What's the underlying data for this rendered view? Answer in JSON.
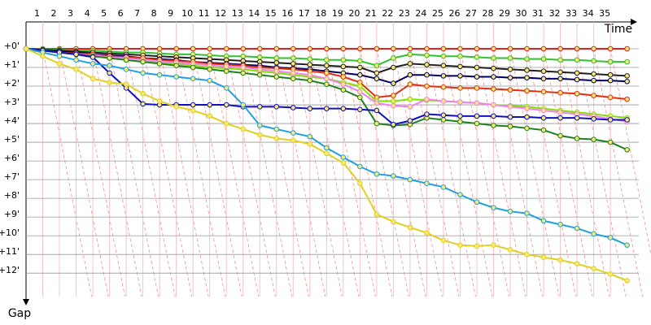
{
  "chart_data": {
    "type": "line",
    "x_label": "Time",
    "y_label": "Gap",
    "x": [
      0,
      1,
      2,
      3,
      4,
      5,
      6,
      7,
      8,
      9,
      10,
      11,
      12,
      13,
      14,
      15,
      16,
      17,
      18,
      19,
      20,
      21,
      22,
      23,
      24,
      25,
      26,
      27,
      28,
      29,
      30,
      31,
      32,
      33,
      34,
      35,
      36
    ],
    "xlim": [
      0,
      36.7
    ],
    "xticks": [
      1,
      2,
      3,
      4,
      5,
      6,
      7,
      8,
      9,
      10,
      11,
      12,
      13,
      14,
      15,
      16,
      17,
      18,
      19,
      20,
      21,
      22,
      23,
      24,
      25,
      26,
      27,
      28,
      29,
      30,
      31,
      32,
      33,
      34,
      35
    ],
    "ylim": [
      -0.1,
      12.5
    ],
    "y_inverted": true,
    "yticks": [
      {
        "value": 0,
        "label": "+0'"
      },
      {
        "value": 1,
        "label": "+1'"
      },
      {
        "value": 2,
        "label": "+2'"
      },
      {
        "value": 3,
        "label": "+3'"
      },
      {
        "value": 4,
        "label": "+4'"
      },
      {
        "value": 5,
        "label": "+5'"
      },
      {
        "value": 6,
        "label": "+6'"
      },
      {
        "value": 7,
        "label": "+7'"
      },
      {
        "value": 8,
        "label": "+8'"
      },
      {
        "value": 9,
        "label": "+9'"
      },
      {
        "value": 10,
        "label": "+10'"
      },
      {
        "value": 11,
        "label": "+11'"
      },
      {
        "value": 12,
        "label": "+12'"
      }
    ],
    "grid": true,
    "series": [
      {
        "color": "#e02020",
        "values": [
          0,
          0,
          0,
          0,
          0,
          0,
          0,
          0,
          0,
          0,
          0,
          0,
          0,
          0,
          0,
          0,
          0,
          0,
          0,
          0,
          0,
          0,
          0,
          0,
          0,
          0,
          0,
          0,
          0,
          0,
          0,
          0,
          0,
          0,
          0,
          0,
          0
        ]
      },
      {
        "color": "#30c030",
        "values": [
          0,
          0,
          0.05,
          0.1,
          0.1,
          0.15,
          0.2,
          0.2,
          0.25,
          0.3,
          0.3,
          0.35,
          0.4,
          0.4,
          0.45,
          0.5,
          0.5,
          0.55,
          0.6,
          0.6,
          0.65,
          0.9,
          0.5,
          0.3,
          0.35,
          0.4,
          0.4,
          0.45,
          0.5,
          0.5,
          0.55,
          0.55,
          0.6,
          0.6,
          0.65,
          0.7,
          0.7
        ]
      },
      {
        "color": "#202020",
        "values": [
          0,
          0.05,
          0.1,
          0.15,
          0.2,
          0.25,
          0.3,
          0.35,
          0.4,
          0.45,
          0.5,
          0.55,
          0.6,
          0.65,
          0.7,
          0.75,
          0.8,
          0.85,
          0.9,
          0.95,
          1.0,
          1.3,
          1.0,
          0.8,
          0.85,
          0.9,
          0.95,
          1.0,
          1.05,
          1.1,
          1.15,
          1.2,
          1.25,
          1.3,
          1.35,
          1.4,
          1.45
        ]
      },
      {
        "color": "#000060",
        "values": [
          0,
          0.1,
          0.15,
          0.2,
          0.3,
          0.35,
          0.4,
          0.5,
          0.55,
          0.6,
          0.7,
          0.75,
          0.8,
          0.85,
          0.9,
          1.0,
          1.05,
          1.1,
          1.2,
          1.3,
          1.4,
          1.6,
          1.85,
          1.4,
          1.4,
          1.45,
          1.45,
          1.5,
          1.5,
          1.55,
          1.55,
          1.6,
          1.6,
          1.65,
          1.7,
          1.7,
          1.75
        ]
      },
      {
        "color": "#e03010",
        "values": [
          0,
          0.1,
          0.2,
          0.25,
          0.3,
          0.4,
          0.45,
          0.5,
          0.6,
          0.65,
          0.7,
          0.8,
          0.85,
          0.9,
          1.0,
          1.05,
          1.1,
          1.2,
          1.3,
          1.5,
          1.8,
          2.6,
          2.5,
          1.9,
          2.0,
          2.05,
          2.1,
          2.1,
          2.15,
          2.2,
          2.25,
          2.3,
          2.35,
          2.4,
          2.5,
          2.6,
          2.7
        ]
      },
      {
        "color": "#80e000",
        "values": [
          0,
          0.1,
          0.2,
          0.3,
          0.4,
          0.5,
          0.6,
          0.7,
          0.75,
          0.8,
          0.9,
          1.0,
          1.05,
          1.1,
          1.2,
          1.3,
          1.4,
          1.5,
          1.6,
          1.8,
          2.0,
          2.8,
          2.8,
          2.7,
          2.75,
          2.8,
          2.85,
          2.9,
          3.0,
          3.05,
          3.1,
          3.2,
          3.3,
          3.4,
          3.5,
          3.6,
          3.7
        ]
      },
      {
        "color": "#f080f0",
        "values": [
          0,
          0.1,
          0.2,
          0.3,
          0.35,
          0.45,
          0.5,
          0.6,
          0.7,
          0.75,
          0.8,
          0.9,
          0.95,
          1.0,
          1.1,
          1.2,
          1.3,
          1.4,
          1.6,
          1.9,
          2.3,
          2.9,
          3.05,
          3.1,
          2.7,
          2.8,
          2.85,
          2.9,
          3.0,
          3.1,
          3.2,
          3.3,
          3.4,
          3.5,
          3.6,
          3.75,
          3.9
        ]
      },
      {
        "color": "#208020",
        "values": [
          0,
          0.1,
          0.2,
          0.3,
          0.4,
          0.5,
          0.6,
          0.7,
          0.8,
          0.9,
          1.0,
          1.1,
          1.2,
          1.3,
          1.4,
          1.5,
          1.6,
          1.7,
          1.9,
          2.2,
          2.6,
          4.0,
          4.1,
          4.05,
          3.7,
          3.8,
          3.9,
          4.0,
          4.1,
          4.15,
          4.25,
          4.35,
          4.65,
          4.8,
          4.85,
          5.0,
          5.4
        ]
      },
      {
        "color": "#1010c0",
        "values": [
          0,
          0.1,
          0.2,
          0.3,
          0.45,
          1.3,
          2.1,
          2.95,
          3.0,
          3.0,
          3.0,
          3.0,
          3.0,
          3.1,
          3.1,
          3.1,
          3.15,
          3.2,
          3.2,
          3.2,
          3.25,
          3.3,
          4.05,
          3.85,
          3.5,
          3.55,
          3.6,
          3.6,
          3.6,
          3.65,
          3.65,
          3.7,
          3.7,
          3.7,
          3.75,
          3.8,
          3.8
        ]
      },
      {
        "color": "#20a0e0",
        "values": [
          0,
          0.2,
          0.4,
          0.6,
          0.8,
          0.9,
          1.1,
          1.3,
          1.4,
          1.5,
          1.6,
          1.7,
          2.1,
          3.0,
          4.1,
          4.3,
          4.5,
          4.7,
          5.3,
          5.8,
          6.3,
          6.7,
          6.8,
          7.0,
          7.2,
          7.4,
          7.8,
          8.2,
          8.5,
          8.7,
          8.8,
          9.2,
          9.4,
          9.6,
          9.9,
          10.1,
          10.5
        ]
      },
      {
        "color": "#e0d020",
        "values": [
          0,
          0.4,
          0.8,
          1.1,
          1.6,
          1.8,
          1.9,
          2.4,
          2.8,
          3.1,
          3.3,
          3.6,
          4.0,
          4.3,
          4.6,
          4.8,
          4.9,
          5.1,
          5.6,
          6.1,
          7.2,
          8.85,
          9.25,
          9.55,
          9.85,
          10.25,
          10.5,
          10.55,
          10.5,
          10.75,
          11.0,
          11.15,
          11.3,
          11.5,
          11.75,
          12.05,
          12.4
        ]
      }
    ]
  }
}
